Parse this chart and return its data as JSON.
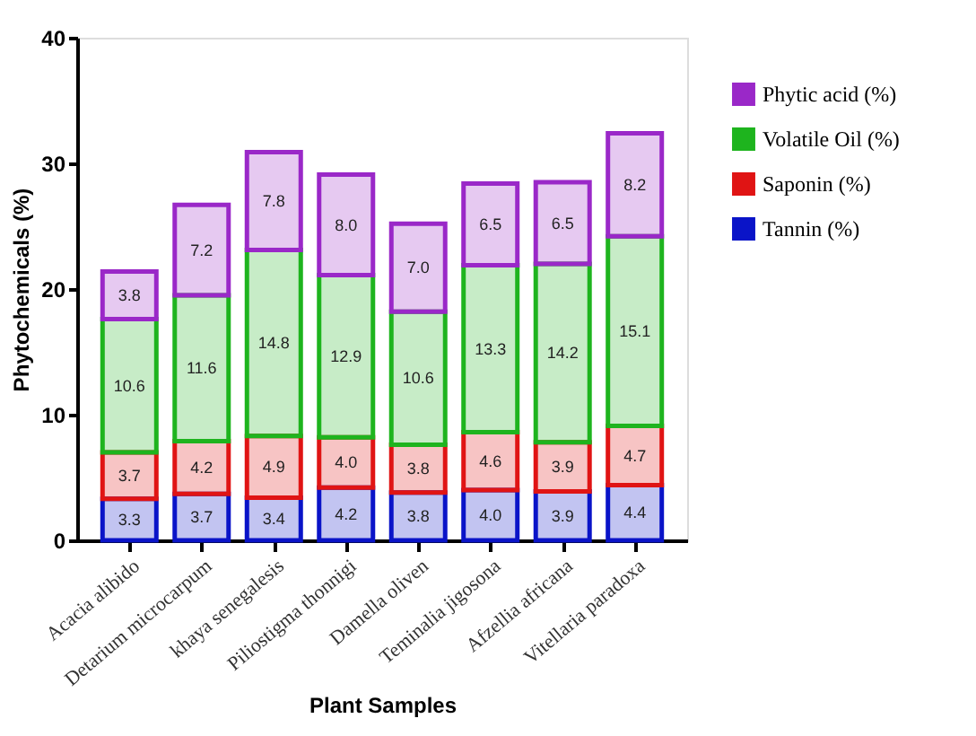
{
  "chart_data": {
    "type": "bar",
    "stacked": true,
    "xlabel": "Plant Samples",
    "ylabel": "Phytochemicals (%)",
    "categories": [
      "Acacia alibido",
      "Detarium microcarpum",
      "khaya senegalesis",
      "Piliostigma thonnigi",
      "Damella oliven",
      "Teminalia jigosona",
      "Afzellia africana",
      "Vitellaria paradoxa"
    ],
    "series": [
      {
        "name": "Tannin (%)",
        "color": "#0a14c8",
        "values": [
          3.3,
          3.7,
          3.4,
          4.2,
          3.8,
          4.0,
          3.9,
          4.4
        ],
        "value_labels": [
          "3.3",
          "3.7",
          "3.4",
          "4.2",
          "3.8",
          "4.0",
          "3.9",
          "4.4"
        ]
      },
      {
        "name": "Saponin (%)",
        "color": "#e01414",
        "values": [
          3.7,
          4.2,
          4.9,
          4.0,
          3.8,
          4.6,
          3.9,
          4.7
        ],
        "value_labels": [
          "3.7",
          "4.2",
          "4.9",
          "4.0",
          "3.8",
          "4.6",
          "3.9",
          "4.7"
        ]
      },
      {
        "name": "Volatile Oil (%)",
        "color": "#1eb41e",
        "values": [
          10.6,
          11.6,
          14.8,
          12.9,
          10.6,
          13.3,
          14.2,
          15.1
        ],
        "value_labels": [
          "10.6",
          "11.6",
          "14.8",
          "12.9",
          "10.6",
          "13.3",
          "14.2",
          "15.1"
        ]
      },
      {
        "name": "Phytic acid (%)",
        "color": "#9a28c8",
        "values": [
          3.8,
          7.2,
          7.8,
          8.0,
          7.0,
          6.5,
          6.5,
          8.2
        ],
        "value_labels": [
          "3.8",
          "7.2",
          "7.8",
          "8.0",
          "7.0",
          "6.5",
          "6.5",
          "8.2"
        ]
      }
    ],
    "ylim": [
      0,
      40
    ],
    "yticks": [
      0,
      10,
      20,
      30,
      40
    ],
    "grid": false,
    "legend": "right"
  }
}
